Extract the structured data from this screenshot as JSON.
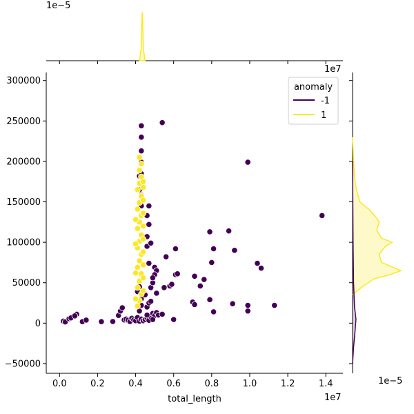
{
  "chart_data": {
    "type": "scatter",
    "subtype": "jointplot",
    "xlabel": "total_length",
    "ylabel": "",
    "x_offset_label": "1e7",
    "top_marginal_offset_label": "1e−5",
    "right_marginal_offset_label": "1e−5",
    "xlim": [
      -0.7,
      14.9
    ],
    "ylim": [
      -62000,
      310000
    ],
    "x_ticks": [
      "0.0",
      "0.2",
      "0.4",
      "0.6",
      "0.8",
      "1.0",
      "1.2",
      "1.4"
    ],
    "x_tick_values": [
      0.0,
      2.0,
      4.0,
      6.0,
      8.0,
      10.0,
      12.0,
      14.0
    ],
    "y_ticks": [
      "−50000",
      "0",
      "50000",
      "100000",
      "150000",
      "200000",
      "250000",
      "300000"
    ],
    "y_tick_values": [
      -50000,
      0,
      50000,
      100000,
      150000,
      200000,
      250000,
      300000
    ],
    "x_unit_note": "x values in units of 1e6 (axis offset 1e7)",
    "grid": false,
    "legend": {
      "title": "anomaly",
      "placement": "top-right",
      "entries": [
        {
          "label": "-1",
          "color": "#440154"
        },
        {
          "label": "1",
          "color": "#fde725"
        }
      ]
    },
    "series": [
      {
        "name": "-1",
        "color": "#440154",
        "points": [
          [
            0.2,
            2500
          ],
          [
            0.3,
            1500
          ],
          [
            0.5,
            5500
          ],
          [
            0.6,
            6500
          ],
          [
            0.9,
            11000
          ],
          [
            0.8,
            9000
          ],
          [
            1.2,
            1800
          ],
          [
            1.4,
            3800
          ],
          [
            2.2,
            1800
          ],
          [
            2.8,
            2000
          ],
          [
            3.1,
            9500
          ],
          [
            3.2,
            15000
          ],
          [
            3.3,
            19000
          ],
          [
            3.4,
            4000
          ],
          [
            3.5,
            5000
          ],
          [
            3.6,
            3500
          ],
          [
            3.7,
            2000
          ],
          [
            3.8,
            6000
          ],
          [
            3.9,
            4000
          ],
          [
            4.0,
            3000
          ],
          [
            4.1,
            7000
          ],
          [
            4.2,
            2500
          ],
          [
            4.3,
            5000
          ],
          [
            4.4,
            3000
          ],
          [
            4.5,
            4500
          ],
          [
            4.6,
            6500
          ],
          [
            4.7,
            3500
          ],
          [
            4.8,
            8000
          ],
          [
            4.9,
            12000
          ],
          [
            5.0,
            9500
          ],
          [
            5.1,
            13000
          ],
          [
            5.2,
            10000
          ],
          [
            5.4,
            11000
          ],
          [
            4.9,
            4500
          ],
          [
            4.6,
            10000
          ],
          [
            4.1,
            39000
          ],
          [
            4.2,
            15000
          ],
          [
            4.3,
            22000
          ],
          [
            4.3,
            30000
          ],
          [
            4.2,
            45000
          ],
          [
            4.6,
            20000
          ],
          [
            4.7,
            25000
          ],
          [
            4.5,
            35000
          ],
          [
            4.8,
            44000
          ],
          [
            4.8,
            27000
          ],
          [
            4.9,
            50000
          ],
          [
            5.0,
            69000
          ],
          [
            5.1,
            65000
          ],
          [
            5.0,
            60000
          ],
          [
            4.9,
            56000
          ],
          [
            4.7,
            74000
          ],
          [
            4.6,
            95000
          ],
          [
            4.6,
            107000
          ],
          [
            4.8,
            99000
          ],
          [
            4.7,
            122000
          ],
          [
            4.6,
            133000
          ],
          [
            4.7,
            145000
          ],
          [
            4.3,
            145000
          ],
          [
            4.3,
            158000
          ],
          [
            4.2,
            165000
          ],
          [
            4.2,
            182000
          ],
          [
            4.3,
            185000
          ],
          [
            4.3,
            199000
          ],
          [
            4.3,
            213000
          ],
          [
            4.3,
            230000
          ],
          [
            4.3,
            244000
          ],
          [
            5.4,
            248000
          ],
          [
            5.6,
            82000
          ],
          [
            5.5,
            44000
          ],
          [
            5.1,
            37000
          ],
          [
            5.8,
            46000
          ],
          [
            5.9,
            48000
          ],
          [
            6.1,
            60000
          ],
          [
            6.2,
            61000
          ],
          [
            6.1,
            92000
          ],
          [
            6.0,
            4500
          ],
          [
            7.0,
            26000
          ],
          [
            7.1,
            23000
          ],
          [
            7.1,
            58000
          ],
          [
            7.4,
            46000
          ],
          [
            7.6,
            54000
          ],
          [
            7.9,
            29000
          ],
          [
            7.9,
            113000
          ],
          [
            8.0,
            75000
          ],
          [
            8.1,
            92000
          ],
          [
            8.1,
            14000
          ],
          [
            8.9,
            114000
          ],
          [
            9.1,
            24000
          ],
          [
            9.2,
            90000
          ],
          [
            9.9,
            199000
          ],
          [
            9.9,
            22000
          ],
          [
            9.9,
            15000
          ],
          [
            10.4,
            74000
          ],
          [
            10.6,
            68000
          ],
          [
            11.3,
            22000
          ],
          [
            13.8,
            133000
          ]
        ]
      },
      {
        "name": "1",
        "color": "#fde725",
        "points": [
          [
            4.1,
            21000
          ],
          [
            4.2,
            28000
          ],
          [
            4.3,
            36000
          ],
          [
            4.1,
            44000
          ],
          [
            4.2,
            52000
          ],
          [
            4.3,
            61000
          ],
          [
            4.1,
            69000
          ],
          [
            4.2,
            77000
          ],
          [
            4.3,
            85000
          ],
          [
            4.1,
            93000
          ],
          [
            4.2,
            101000
          ],
          [
            4.3,
            109000
          ],
          [
            4.1,
            117000
          ],
          [
            4.2,
            125000
          ],
          [
            4.3,
            133000
          ],
          [
            4.1,
            141000
          ],
          [
            4.2,
            149000
          ],
          [
            4.3,
            157000
          ],
          [
            4.1,
            165000
          ],
          [
            4.2,
            173000
          ],
          [
            4.3,
            181000
          ],
          [
            4.2,
            189000
          ],
          [
            4.3,
            197000
          ],
          [
            4.2,
            205000
          ],
          [
            4.4,
            40000
          ],
          [
            4.4,
            56000
          ],
          [
            4.4,
            72000
          ],
          [
            4.4,
            88000
          ],
          [
            4.4,
            104000
          ],
          [
            4.4,
            120000
          ],
          [
            4.4,
            136000
          ],
          [
            4.4,
            152000
          ],
          [
            4.4,
            168000
          ],
          [
            4.4,
            175000
          ],
          [
            4.0,
            30000
          ],
          [
            4.0,
            62000
          ],
          [
            4.0,
            98000
          ],
          [
            4.0,
            128000
          ]
        ]
      }
    ],
    "marginal_x": {
      "series": [
        {
          "name": "1",
          "color": "#fde725",
          "peak_x": 4.35,
          "shape": "narrow spike"
        }
      ]
    },
    "marginal_y": {
      "series": [
        {
          "name": "1",
          "color": "#fde725",
          "density_profile": [
            [
              35000,
              0.0
            ],
            [
              45000,
              0.2
            ],
            [
              55000,
              0.45
            ],
            [
              60000,
              0.78
            ],
            [
              65000,
              1.0
            ],
            [
              70000,
              0.8
            ],
            [
              75000,
              0.6
            ],
            [
              85000,
              0.55
            ],
            [
              95000,
              0.68
            ],
            [
              100000,
              0.82
            ],
            [
              105000,
              0.6
            ],
            [
              115000,
              0.5
            ],
            [
              125000,
              0.55
            ],
            [
              130000,
              0.5
            ],
            [
              140000,
              0.35
            ],
            [
              150000,
              0.15
            ],
            [
              165000,
              0.08
            ],
            [
              180000,
              0.04
            ],
            [
              200000,
              0.02
            ],
            [
              230000,
              0.0
            ]
          ]
        },
        {
          "name": "-1",
          "color": "#440154",
          "density_profile": [
            [
              -50000,
              0.0
            ],
            [
              -30000,
              0.02
            ],
            [
              -10000,
              0.05
            ],
            [
              5000,
              0.07
            ],
            [
              20000,
              0.04
            ],
            [
              50000,
              0.02
            ],
            [
              100000,
              0.01
            ],
            [
              200000,
              0.0
            ]
          ]
        }
      ]
    }
  }
}
